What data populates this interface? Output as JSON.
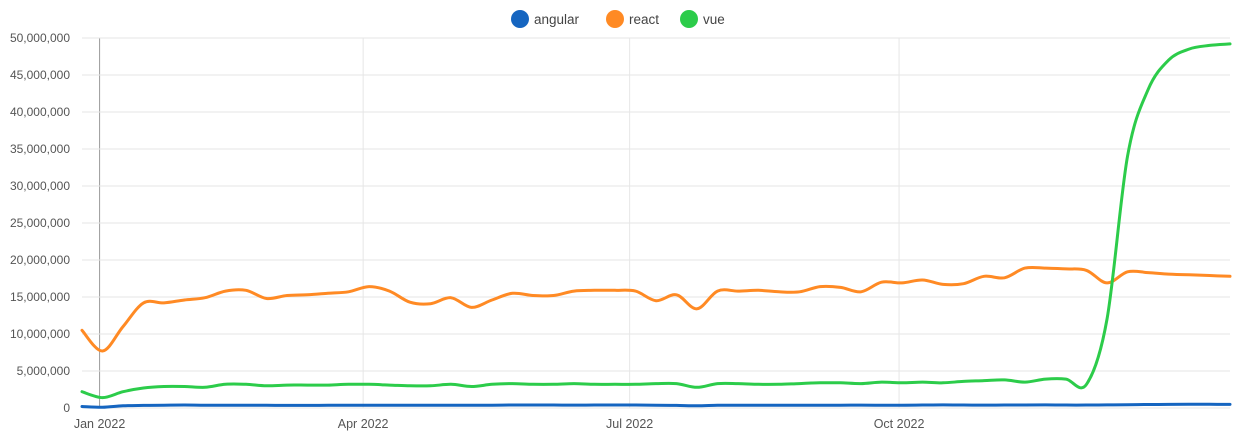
{
  "chart_data": {
    "type": "line",
    "title": "",
    "xlabel": "",
    "ylabel": "",
    "ylim": [
      0,
      50000000
    ],
    "xlim": [
      "2021-12-26",
      "2023-01-22"
    ],
    "y_ticks": [
      "0",
      "5,000,000",
      "10,000,000",
      "15,000,000",
      "20,000,000",
      "25,000,000",
      "30,000,000",
      "35,000,000",
      "40,000,000",
      "45,000,000",
      "50,000,000"
    ],
    "x_ticks": [
      {
        "label": "Jan 2022",
        "date": "2022-01-01"
      },
      {
        "label": "Apr 2022",
        "date": "2022-04-01"
      },
      {
        "label": "Jul 2022",
        "date": "2022-07-01"
      },
      {
        "label": "Oct 2022",
        "date": "2022-10-01"
      }
    ],
    "grid": true,
    "legend_position": "top",
    "hover_line_date": "2022-01-01",
    "x": [
      "2021-12-26",
      "2022-01-02",
      "2022-01-09",
      "2022-01-16",
      "2022-01-23",
      "2022-01-30",
      "2022-02-06",
      "2022-02-13",
      "2022-02-20",
      "2022-02-27",
      "2022-03-06",
      "2022-03-13",
      "2022-03-20",
      "2022-03-27",
      "2022-04-03",
      "2022-04-10",
      "2022-04-17",
      "2022-04-24",
      "2022-05-01",
      "2022-05-08",
      "2022-05-15",
      "2022-05-22",
      "2022-05-29",
      "2022-06-05",
      "2022-06-12",
      "2022-06-19",
      "2022-06-26",
      "2022-07-03",
      "2022-07-10",
      "2022-07-17",
      "2022-07-24",
      "2022-07-31",
      "2022-08-07",
      "2022-08-14",
      "2022-08-21",
      "2022-08-28",
      "2022-09-04",
      "2022-09-11",
      "2022-09-18",
      "2022-09-25",
      "2022-10-02",
      "2022-10-09",
      "2022-10-16",
      "2022-10-23",
      "2022-10-30",
      "2022-11-06",
      "2022-11-13",
      "2022-11-20",
      "2022-11-27",
      "2022-12-04",
      "2022-12-11",
      "2022-12-18",
      "2022-12-25",
      "2023-01-01",
      "2023-01-08",
      "2023-01-15",
      "2023-01-22"
    ],
    "series": [
      {
        "name": "angular",
        "color": "#1565c0",
        "values": [
          200000,
          100000,
          300000,
          350000,
          380000,
          400000,
          380000,
          370000,
          380000,
          360000,
          350000,
          350000,
          360000,
          370000,
          380000,
          370000,
          360000,
          370000,
          380000,
          360000,
          380000,
          400000,
          400000,
          400000,
          390000,
          400000,
          400000,
          400000,
          380000,
          350000,
          300000,
          360000,
          380000,
          370000,
          360000,
          370000,
          380000,
          380000,
          390000,
          370000,
          380000,
          400000,
          420000,
          400000,
          390000,
          400000,
          410000,
          420000,
          400000,
          400000,
          420000,
          450000,
          470000,
          490000,
          500000,
          500000,
          480000
        ]
      },
      {
        "name": "react",
        "color": "#ff8a24",
        "values": [
          10500000,
          7700000,
          11000000,
          14200000,
          14200000,
          14600000,
          14900000,
          15800000,
          15900000,
          14800000,
          15200000,
          15300000,
          15500000,
          15700000,
          16400000,
          15800000,
          14300000,
          14100000,
          14900000,
          13600000,
          14600000,
          15500000,
          15200000,
          15200000,
          15800000,
          15900000,
          15900000,
          15800000,
          14500000,
          15300000,
          13400000,
          15800000,
          15800000,
          15900000,
          15700000,
          15700000,
          16400000,
          16300000,
          15700000,
          17000000,
          16900000,
          17300000,
          16700000,
          16800000,
          17800000,
          17600000,
          18900000,
          18900000,
          18800000,
          18600000,
          16900000,
          18400000,
          18300000,
          18100000,
          18000000,
          17900000,
          17800000
        ]
      },
      {
        "name": "vue",
        "color": "#2ccc4a",
        "values": [
          2200000,
          1400000,
          2200000,
          2700000,
          2900000,
          2900000,
          2800000,
          3200000,
          3200000,
          3000000,
          3100000,
          3100000,
          3100000,
          3200000,
          3200000,
          3100000,
          3000000,
          3000000,
          3200000,
          2900000,
          3200000,
          3300000,
          3200000,
          3200000,
          3300000,
          3200000,
          3200000,
          3200000,
          3300000,
          3300000,
          2800000,
          3300000,
          3300000,
          3200000,
          3200000,
          3300000,
          3400000,
          3400000,
          3300000,
          3500000,
          3400000,
          3500000,
          3400000,
          3600000,
          3700000,
          3800000,
          3500000,
          3900000,
          3900000,
          3200000,
          12000000,
          34000000,
          43000000,
          47000000,
          48500000,
          49000000,
          49200000
        ]
      }
    ]
  }
}
